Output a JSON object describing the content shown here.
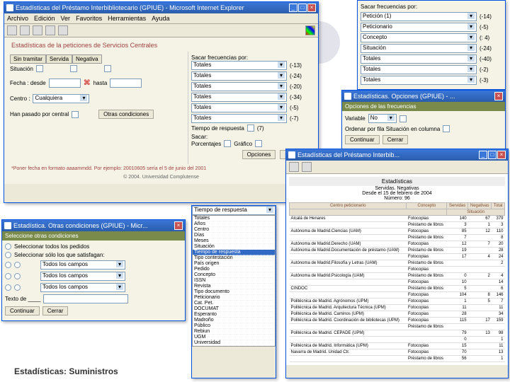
{
  "footer_label": "Estadísticas: Suministros",
  "win1": {
    "title": "Estadísticas del Préstamo Interbibliotecario (GPIUE) - Microsoft Internet Explorer",
    "menus": [
      "Archivo",
      "Edición",
      "Ver",
      "Favoritos",
      "Herramientas",
      "Ayuda"
    ],
    "section": "Estadísticas de la peticiones de Servicios Centrales",
    "tabs": [
      "Sin tramitar",
      "Servida",
      "Negativa"
    ],
    "situacion_label": "Situación",
    "fecha_label": "Fecha :  desde",
    "fecha_hasta": "hasta",
    "centro_label": "Centro :",
    "centro_value": "Cualquiera",
    "han_pasado": "Han pasado por central",
    "otras_cond": "Otras condiciones",
    "sacar_freq": "Sacar frecuencias por:",
    "freq_items": [
      "Totales",
      "Totales",
      "Totales",
      "Totales",
      "Totales",
      "Totales"
    ],
    "freq_counts": [
      "(-13)",
      "(-24)",
      "(-20)",
      "(-34)",
      "(-5)",
      "(-7)"
    ],
    "tiempo_resp": "Tiempo de respuesta",
    "sacar": "Sacar:",
    "porcentajes": "Porcentajes",
    "grafico": "Gráfico",
    "opciones": "Opciones",
    "ejecutar": "Ejec utar",
    "footnote": "*Poner fecha en formato aaaammdd. Por ejemplo: 20010605 sería el 5 de junio del 2001",
    "copyright": "© 2004. Universidad Complutense"
  },
  "win2": {
    "header": "Sacar frecuencias por:",
    "rows": [
      {
        "label": "Petición (1)",
        "count": "(-14)"
      },
      {
        "label": "Peticionario",
        "count": "(-5)"
      },
      {
        "label": "Concepto",
        "count": "(: 4)"
      },
      {
        "label": "Situación",
        "count": "(-24)"
      },
      {
        "label": "Totales",
        "count": "(-40)"
      },
      {
        "label": "Totales",
        "count": "(-2)"
      },
      {
        "label": "Totales",
        "count": "(-3)"
      }
    ]
  },
  "win3": {
    "title": "Estadísticas. Opciones (GPIUE) - ...",
    "bar": "Opciones de las frecuencias",
    "variable": "Variable",
    "no": "No",
    "ordenar": "Ordenar por fila Situación en columna",
    "continuar": "Continuar",
    "cerrar": "Cerrar"
  },
  "win4": {
    "title": "Estadísticas del Préstamo Interbib...",
    "report_title": "Estadísticas",
    "subtitle": "Servidas. Negativas",
    "date_range": "Desde el 15 de febrero de 2004",
    "total": "Número: 96",
    "cols": [
      "Centro peticionario",
      "Concepto",
      "Servidas",
      "Negativas",
      "Total"
    ],
    "rows": [
      [
        "Alcalá de Henares",
        "Fotocopias",
        "140",
        "67",
        "379"
      ],
      [
        "",
        "Préstamo de libros",
        "3",
        "1",
        "3"
      ],
      [
        "Autónoma de Madrid.Ciencias (UAM)",
        "Fotocopias",
        "85",
        "12",
        "110"
      ],
      [
        "",
        "Préstamo de libros",
        "7",
        "",
        "8"
      ],
      [
        "Autónoma de Madrid.Derecho (UAM)",
        "Fotocopias",
        "12",
        "7",
        "20"
      ],
      [
        "Autónoma de Madrid.Documentación de préstamo (UAM)",
        "Préstamo de libros",
        "19",
        "",
        "28"
      ],
      [
        "",
        "Fotocopias",
        "17",
        "4",
        "24"
      ],
      [
        "Autónoma de Madrid.Filosofía y Letras (UAM)",
        "Préstamo de libros",
        "",
        "",
        "2"
      ],
      [
        "",
        "Fotocopias",
        "",
        "",
        ""
      ],
      [
        "Autónoma de Madrid.Psicología (UAM)",
        "Préstamo de libros",
        "0",
        "2",
        "4"
      ],
      [
        "",
        "Fotocopias",
        "10",
        "",
        "14"
      ],
      [
        "CINDOC",
        "Préstamo de libros",
        "5",
        "",
        "6"
      ],
      [
        "",
        "Fotocopias",
        "104",
        "8",
        "146"
      ],
      [
        "Politécnica de Madrid. Agrónomos (UPM)",
        "Fotocopias",
        "1",
        "5",
        "7"
      ],
      [
        "Politécnica de Madrid. Arquitectura Técnica (UPM)",
        "Fotocopias",
        "11",
        "",
        "11"
      ],
      [
        "Politécnica de Madrid. Caminos (UPM)",
        "Fotocopias",
        "28",
        "",
        "34"
      ],
      [
        "Politécnica de Madrid. Coordinación de bibliotecas (UPM)",
        "Fotocopias",
        "115",
        "17",
        "159"
      ],
      [
        "",
        "Préstamo de libros",
        "",
        "",
        ""
      ],
      [
        "Politécnica de Madrid. CEPADE (UPM)",
        "",
        "79",
        "13",
        "98"
      ],
      [
        "",
        "",
        "0",
        "",
        "1"
      ],
      [
        "Politécnica de Madrid. Informática (UPM)",
        "Fotocopias",
        "15",
        "",
        "11"
      ],
      [
        "Navarra de Madrid. Unidad Ctr.",
        "Fotocopias",
        "70",
        "",
        "13"
      ],
      [
        "",
        "Préstamo de libros",
        "56",
        "",
        "1"
      ]
    ]
  },
  "win5": {
    "title": "Estadística. Otras condiciones (GPIUE) - Micr...",
    "bar": "Seleccione otras condiciones",
    "opt1": "Seleccionar todos los pedidos",
    "opt2": "Seleccionar sólo los que satisfagan:",
    "rows": [
      {
        "val": "Todos los campos"
      },
      {
        "val": "Todos los campos"
      },
      {
        "val": "Todos los campos"
      }
    ],
    "texto_label": "Texto de ____",
    "continuar": "Continuar",
    "cerrar": "Cerrar"
  },
  "win6": {
    "title": "Tiempo de respuesta",
    "items": [
      "Totales",
      "Años",
      "Centro",
      "Días",
      "Meses",
      "Situación",
      "Tiempo de respuesta",
      "Tipo contestación",
      "País origen",
      "Pedido",
      "Concepto",
      "ISSN",
      "Revista",
      "Tipo documento",
      "Peticionario",
      "Cat. Pet.",
      "DOCUMAT",
      "Esperanto",
      "Madroño",
      "Público",
      "Rebiun",
      "UGM",
      "Universidad"
    ]
  }
}
